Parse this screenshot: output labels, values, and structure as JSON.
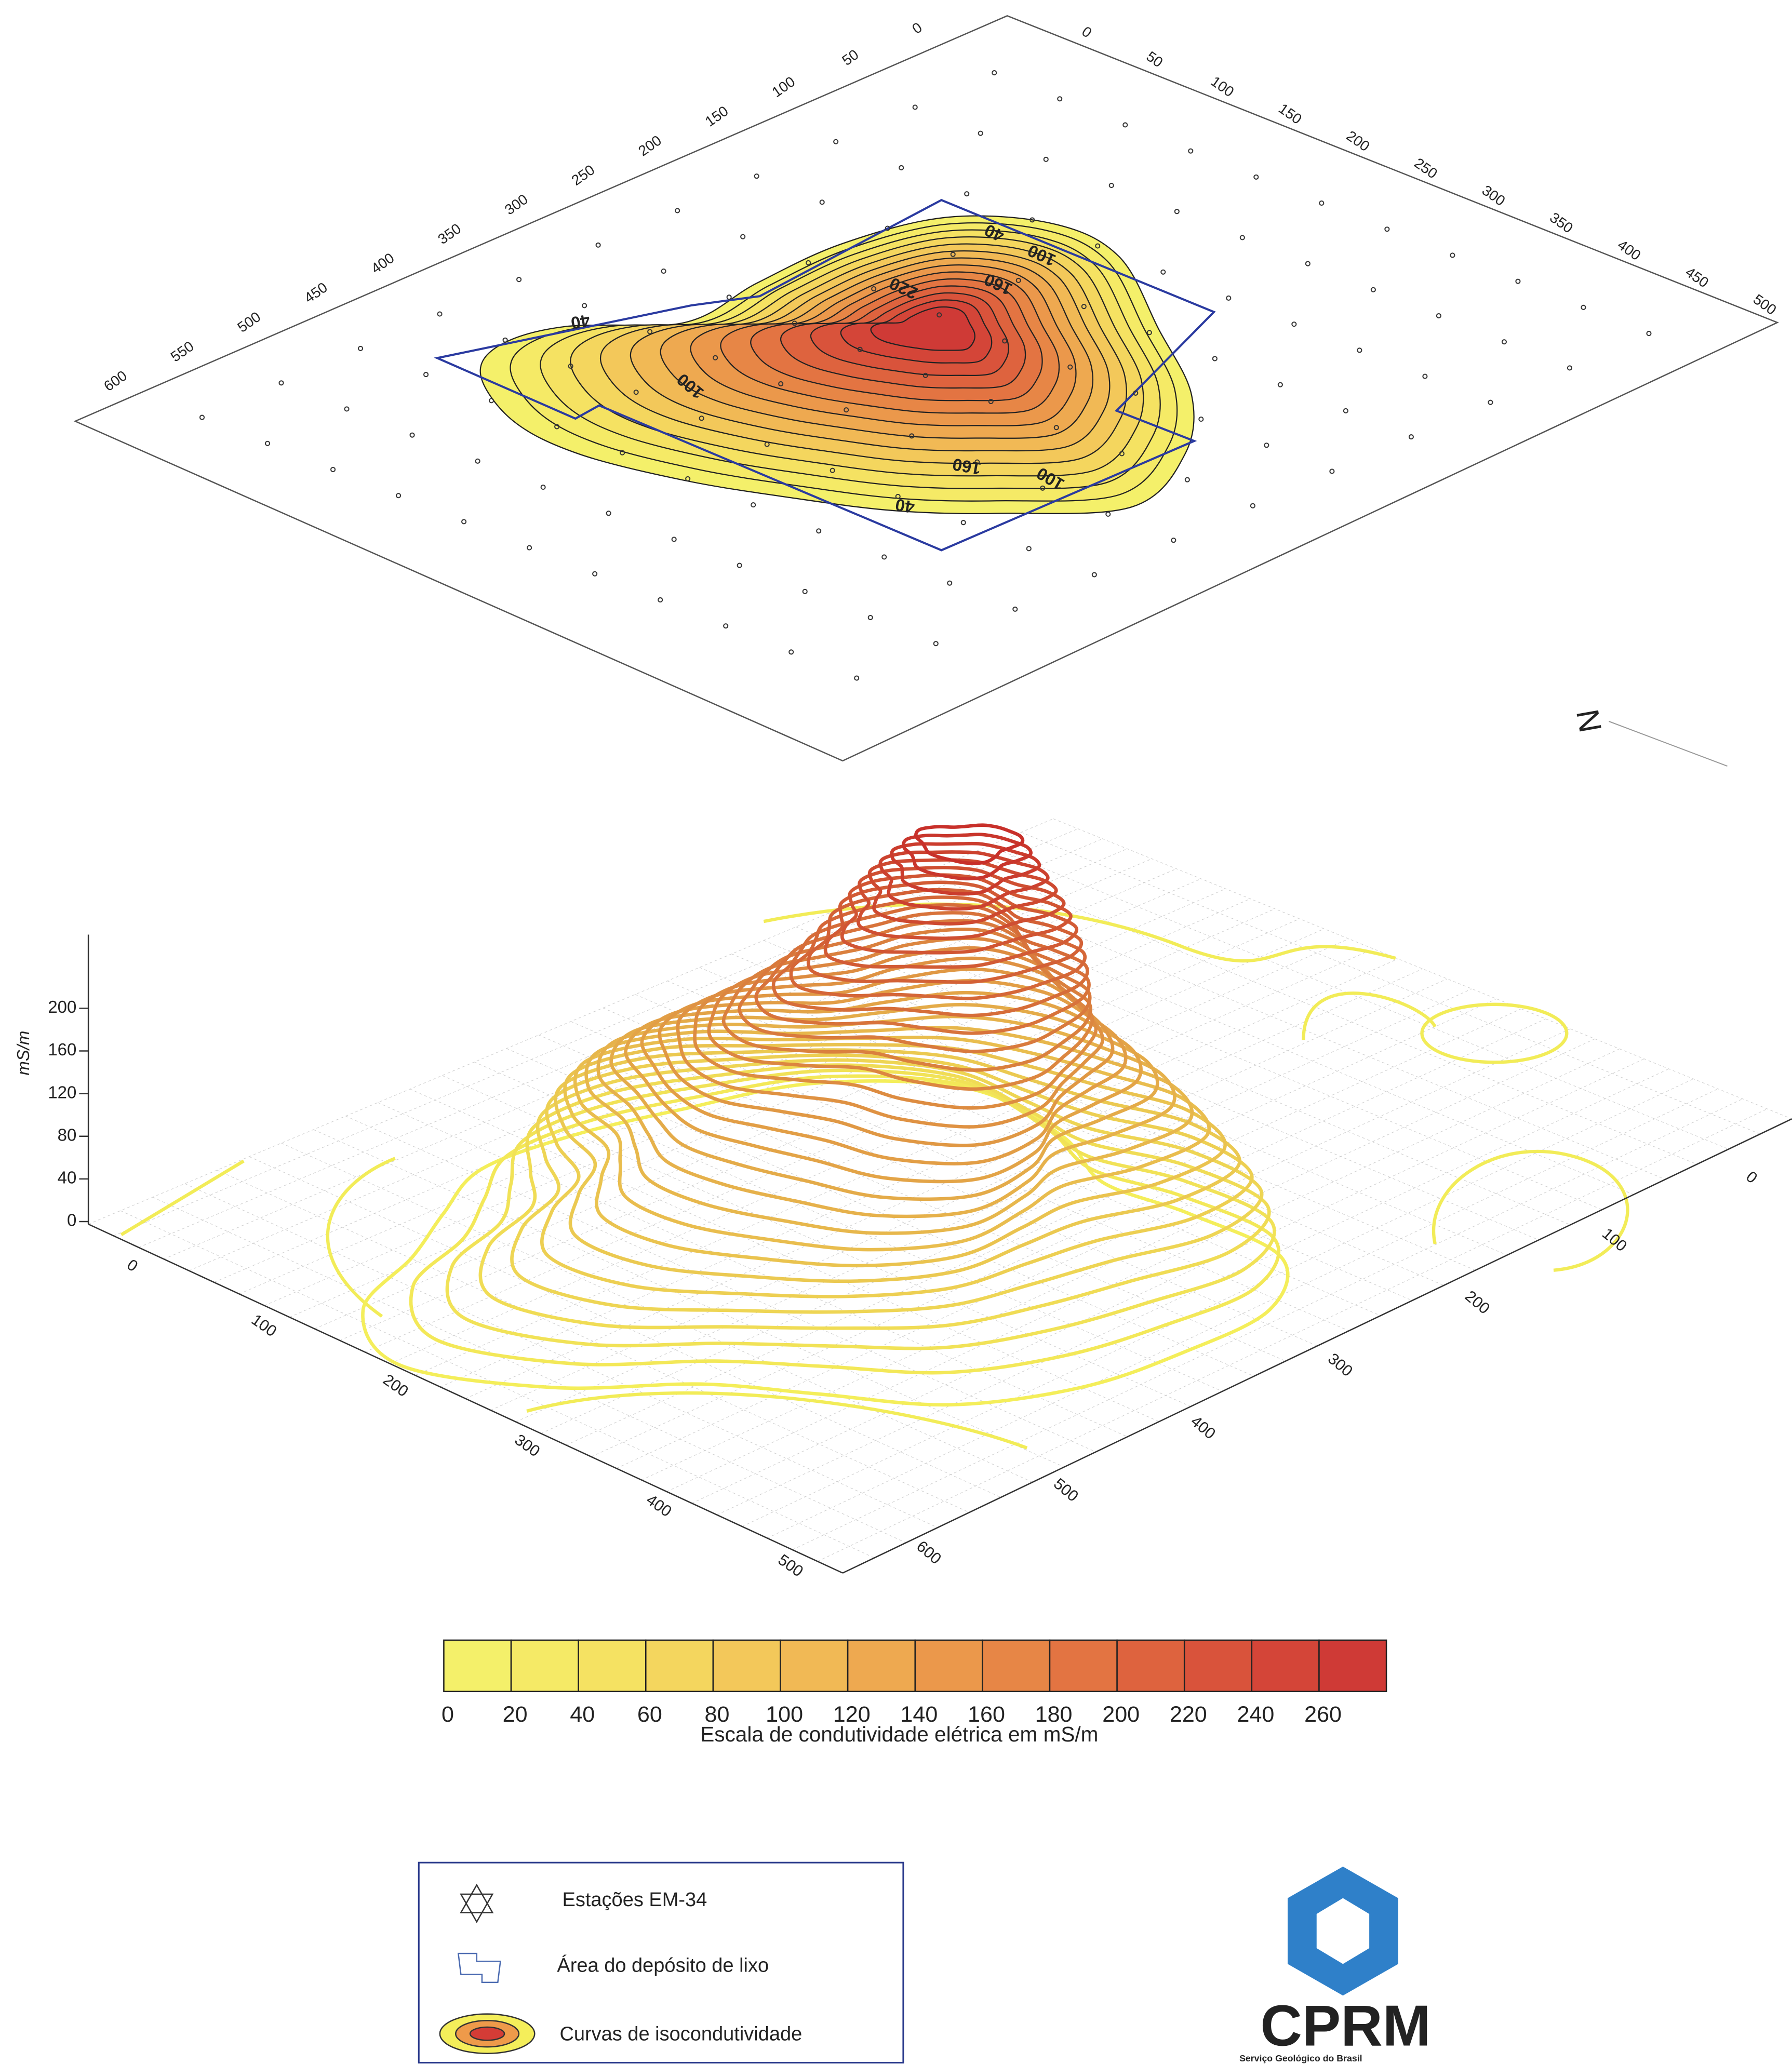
{
  "top_map": {
    "x_axis": {
      "ticks": [
        0,
        50,
        100,
        150,
        200,
        250,
        300,
        350,
        400,
        450,
        500,
        550,
        600
      ]
    },
    "y_axis": {
      "ticks": [
        0,
        50,
        100,
        150,
        200,
        250,
        300,
        350,
        400,
        450,
        500
      ]
    },
    "contour_labels": [
      "40",
      "100",
      "160",
      "220",
      "40",
      "100",
      "160",
      "100",
      "40"
    ],
    "north": "N"
  },
  "surface_3d": {
    "z_axis": {
      "label": "mS/m",
      "ticks": [
        0,
        40,
        80,
        120,
        160,
        200
      ]
    },
    "x_axis": {
      "ticks": [
        0,
        100,
        200,
        300,
        400,
        500
      ]
    },
    "y_axis": {
      "ticks": [
        0,
        100,
        200,
        300,
        400,
        500,
        600
      ]
    }
  },
  "color_scale": {
    "ticks": [
      0,
      20,
      40,
      60,
      80,
      100,
      120,
      140,
      160,
      180,
      200,
      220,
      240,
      260
    ],
    "title": "Escala de condutividade elétrica em  mS/m",
    "colors": [
      "#f4f06a",
      "#f5ea66",
      "#f5e262",
      "#f4d65e",
      "#f3c85a",
      "#f1b955",
      "#eea950",
      "#eb984b",
      "#e78646",
      "#e37442",
      "#de633e",
      "#d9533b",
      "#d44538",
      "#cf3a36"
    ]
  },
  "legend": {
    "items": [
      "Estações EM-34",
      "Área do depósito de lixo",
      "Curvas de isocondutividade"
    ]
  },
  "logo": {
    "name": "CPRM",
    "subtitle": "Serviço Geológico do Brasil"
  }
}
